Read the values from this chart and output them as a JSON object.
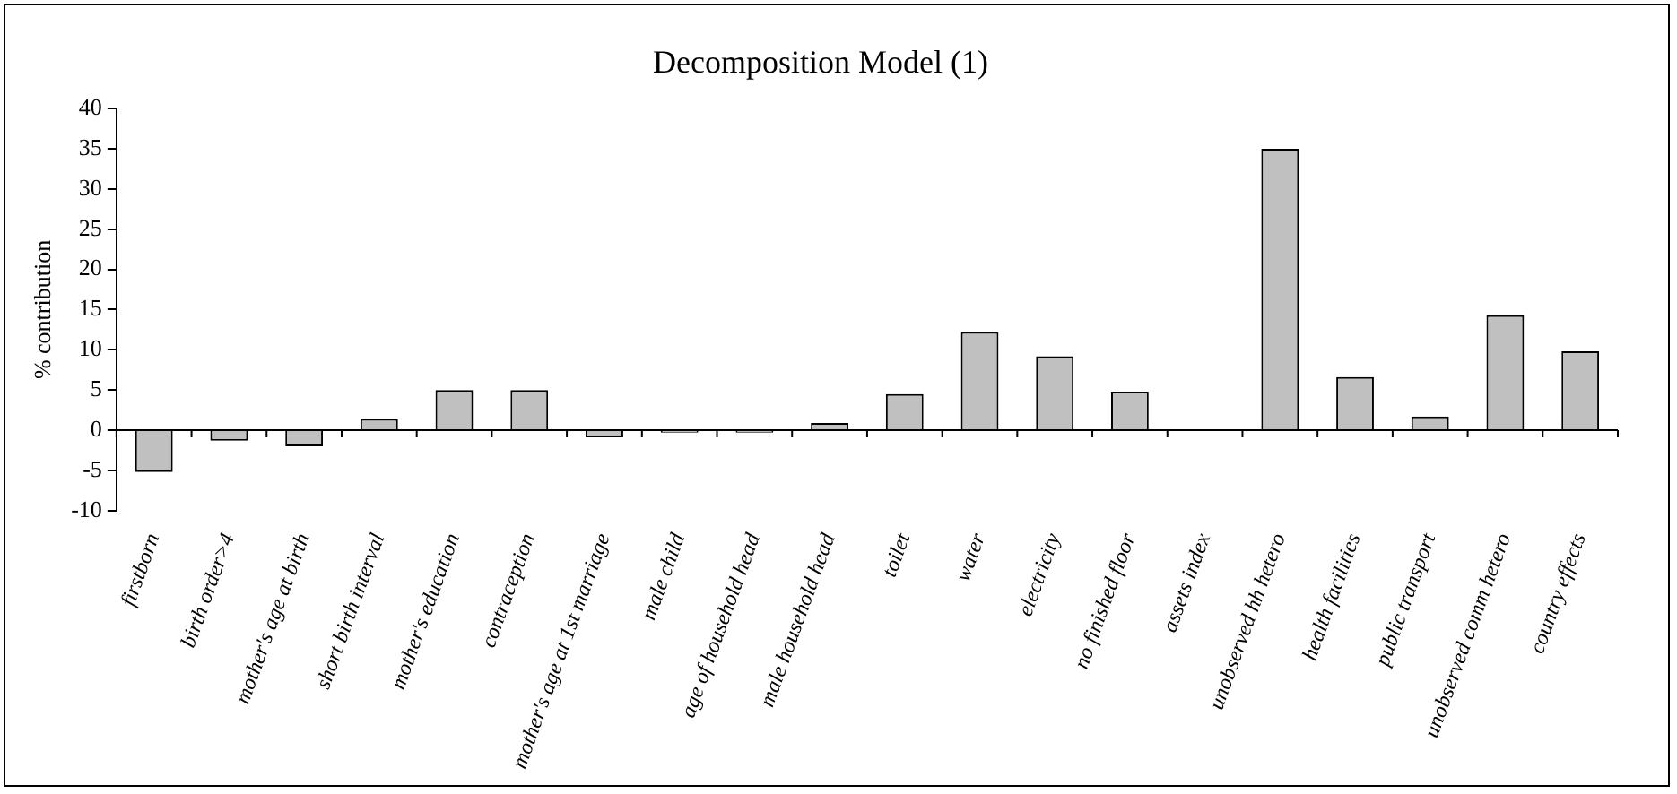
{
  "chart_data": {
    "type": "bar",
    "title": "Decomposition Model (1)",
    "ylabel": "% contribution",
    "categories": [
      "firstborn",
      "birth order>4",
      "mother's age at birth",
      "short birth interval",
      "mother's education",
      "contraception",
      "mother's age at 1st marriage",
      "male child",
      "age of household head",
      "male household head",
      "toilet",
      "water",
      "electricity",
      "no finished floor",
      "assets index",
      "unobserved hh hetero",
      "health facilities",
      "public transport",
      "unobserved comm hetero",
      "country effects"
    ],
    "values": [
      -5.2,
      -1.3,
      -2.0,
      1.4,
      5.0,
      5.0,
      -0.9,
      -0.3,
      -0.3,
      0.9,
      4.5,
      12.2,
      9.2,
      4.8,
      0,
      35,
      6.6,
      1.7,
      14.3,
      9.8
    ],
    "color": "#c0c0c0",
    "ylim": [
      -10,
      40
    ],
    "yticks": [
      -10,
      -5,
      0,
      5,
      10,
      15,
      20,
      25,
      30,
      35,
      40
    ],
    "legend": false
  }
}
